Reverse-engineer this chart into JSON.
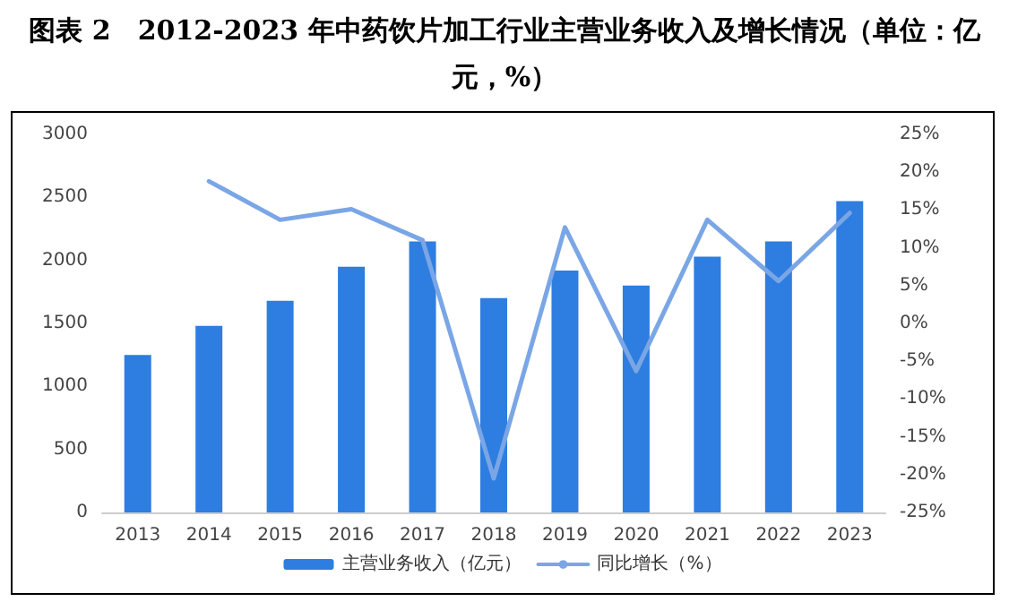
{
  "chart_data": {
    "type": "bar",
    "title": "图表 2　2012-2023 年中药饮片加工行业主营业务收入及增长情况（单位：亿元，%）",
    "categories": [
      "2013",
      "2014",
      "2015",
      "2016",
      "2017",
      "2018",
      "2019",
      "2020",
      "2021",
      "2022",
      "2023"
    ],
    "series": [
      {
        "name": "主营业务收入（亿元）",
        "color": "#2e7de0",
        "values": [
          1250,
          1480,
          1680,
          1950,
          2150,
          1700,
          1920,
          1800,
          2030,
          2150,
          2470
        ]
      },
      {
        "name": "同比增长（%）",
        "type": "line",
        "axis": "y2",
        "color": "#7aa6e6",
        "values": [
          null,
          18.8,
          13.7,
          15.1,
          11,
          -20.5,
          12.7,
          -6.3,
          13.7,
          5.6,
          14.6
        ]
      }
    ],
    "ylim": [
      0,
      3000
    ],
    "yticks": [
      0,
      500,
      1000,
      1500,
      2000,
      2500,
      3000
    ],
    "y2lim": [
      -25,
      25
    ],
    "y2ticks": [
      {
        "value": -25,
        "label": "-25%"
      },
      {
        "value": -20,
        "label": "-20%"
      },
      {
        "value": -15,
        "label": "-15%"
      },
      {
        "value": -10,
        "label": "-10%"
      },
      {
        "value": -5,
        "label": "-5%"
      },
      {
        "value": 0,
        "label": "0%"
      },
      {
        "value": 5,
        "label": "5%"
      },
      {
        "value": 10,
        "label": "10%"
      },
      {
        "value": 15,
        "label": "15%"
      },
      {
        "value": 20,
        "label": "20%"
      },
      {
        "value": 25,
        "label": "25%"
      }
    ],
    "grid": false,
    "legend": "bottom",
    "marker": "none"
  }
}
